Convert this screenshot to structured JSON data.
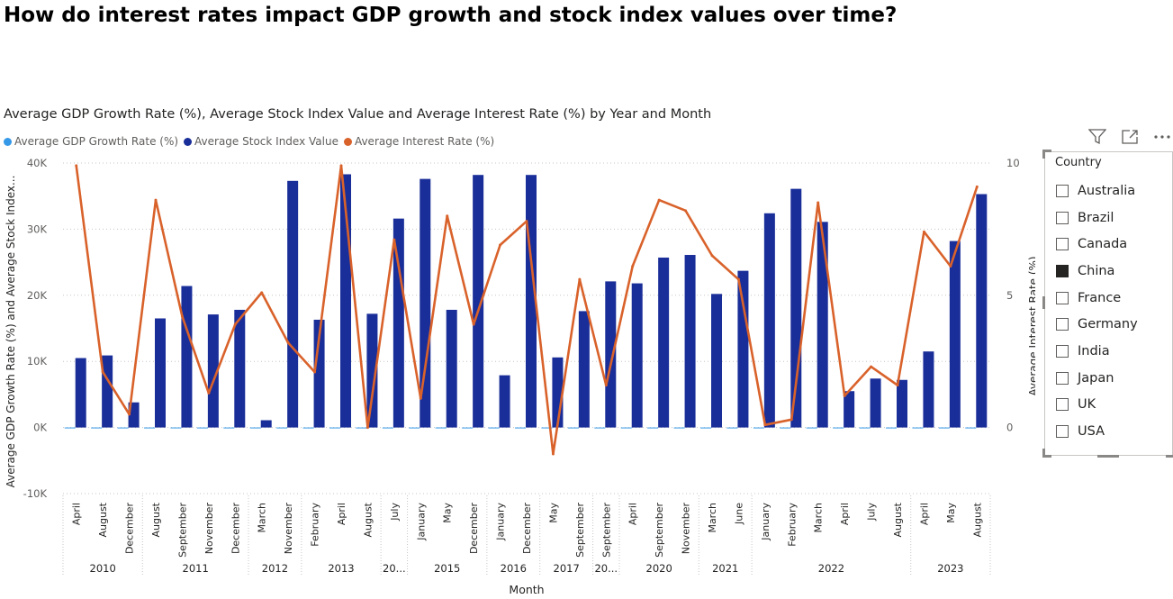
{
  "page": {
    "title": "How do interest rates impact GDP growth and stock index values over time?"
  },
  "visual": {
    "title": "Average GDP Growth Rate (%), Average Stock Index Value and Average Interest Rate (%) by Year and Month",
    "icons": [
      "filter-icon",
      "focus-mode-icon",
      "more-options-icon"
    ]
  },
  "legend": [
    {
      "label": "Average GDP Growth Rate (%)",
      "color": "#3599e8"
    },
    {
      "label": "Average Stock Index Value",
      "color": "#1a2e99"
    },
    {
      "label": "Average Interest Rate (%)",
      "color": "#d9622b"
    }
  ],
  "slicer": {
    "title": "Country",
    "items": [
      {
        "label": "Australia",
        "checked": false
      },
      {
        "label": "Brazil",
        "checked": false
      },
      {
        "label": "Canada",
        "checked": false
      },
      {
        "label": "China",
        "checked": true
      },
      {
        "label": "France",
        "checked": false
      },
      {
        "label": "Germany",
        "checked": false
      },
      {
        "label": "India",
        "checked": false
      },
      {
        "label": "Japan",
        "checked": false
      },
      {
        "label": "UK",
        "checked": false
      },
      {
        "label": "USA",
        "checked": false
      }
    ]
  },
  "chart_data": {
    "type": "bar",
    "title": "Average GDP Growth Rate (%), Average Stock Index Value and Average Interest Rate (%) by Year and Month",
    "xlabel": "Month",
    "ylabel": "Average GDP Growth Rate (%) and Average Stock Index...",
    "y2label": "Average Interest Rate (%)",
    "ylim": [
      -10000,
      40000
    ],
    "yticks": [
      -10000,
      0,
      10000,
      20000,
      30000,
      40000
    ],
    "ytick_labels": [
      "-10K",
      "0K",
      "10K",
      "20K",
      "30K",
      "40K"
    ],
    "y2lim": [
      -1,
      10
    ],
    "y2ticks": [
      0,
      5,
      10
    ],
    "y2tick_labels": [
      "0",
      "5",
      "10"
    ],
    "grid": true,
    "legend_position": "top-left",
    "months": [
      "April",
      "August",
      "December",
      "August",
      "September",
      "November",
      "December",
      "March",
      "November",
      "February",
      "April",
      "August",
      "July",
      "January",
      "May",
      "December",
      "January",
      "December",
      "May",
      "September",
      "September",
      "April",
      "September",
      "November",
      "March",
      "June",
      "January",
      "February",
      "March",
      "April",
      "July",
      "August",
      "April",
      "May",
      "August"
    ],
    "years": [
      {
        "label": "2010",
        "span": 3
      },
      {
        "label": "2011",
        "span": 4
      },
      {
        "label": "2012",
        "span": 2
      },
      {
        "label": "2013",
        "span": 3
      },
      {
        "label": "20...",
        "span": 1
      },
      {
        "label": "2015",
        "span": 3
      },
      {
        "label": "2016",
        "span": 2
      },
      {
        "label": "2017",
        "span": 2
      },
      {
        "label": "20...",
        "span": 1
      },
      {
        "label": "2020",
        "span": 3
      },
      {
        "label": "2021",
        "span": 2
      },
      {
        "label": "2022",
        "span": 6
      },
      {
        "label": "2023",
        "span": 3
      }
    ],
    "series": [
      {
        "name": "Average GDP Growth Rate (%)",
        "kind": "bar",
        "axis": "left",
        "color": "#3599e8",
        "values": [
          3,
          2,
          -1,
          2,
          4,
          -3,
          1,
          2,
          3,
          -2,
          4,
          1,
          2,
          -3,
          5,
          -4,
          2,
          -1,
          3,
          2,
          -2,
          4,
          1,
          3,
          -2,
          2,
          3,
          -1,
          2,
          4,
          3,
          -2,
          3,
          2,
          1
        ]
      },
      {
        "name": "Average Stock Index Value",
        "kind": "bar",
        "axis": "left",
        "color": "#1a2e99",
        "values": [
          10500,
          10900,
          3800,
          16500,
          21400,
          17100,
          17800,
          1100,
          37300,
          16300,
          38300,
          17200,
          31600,
          37600,
          17800,
          38200,
          7900,
          38200,
          10600,
          17600,
          22100,
          21800,
          25700,
          26100,
          20200,
          23700,
          32400,
          36100,
          31100,
          5500,
          7400,
          7200,
          11500,
          28200,
          35300
        ]
      },
      {
        "name": "Average Interest Rate (%)",
        "kind": "line",
        "axis": "right",
        "color": "#d9622b",
        "values": [
          9.9,
          2.1,
          0.5,
          8.6,
          4.2,
          1.3,
          3.9,
          5.1,
          3.2,
          2.1,
          9.9,
          0.0,
          7.1,
          1.1,
          8.0,
          3.9,
          6.9,
          7.8,
          -1.0,
          5.6,
          1.6,
          6.1,
          8.6,
          8.2,
          6.5,
          5.6,
          0.1,
          0.3,
          8.5,
          1.2,
          2.3,
          1.6,
          7.4,
          6.1,
          9.1
        ]
      }
    ]
  }
}
